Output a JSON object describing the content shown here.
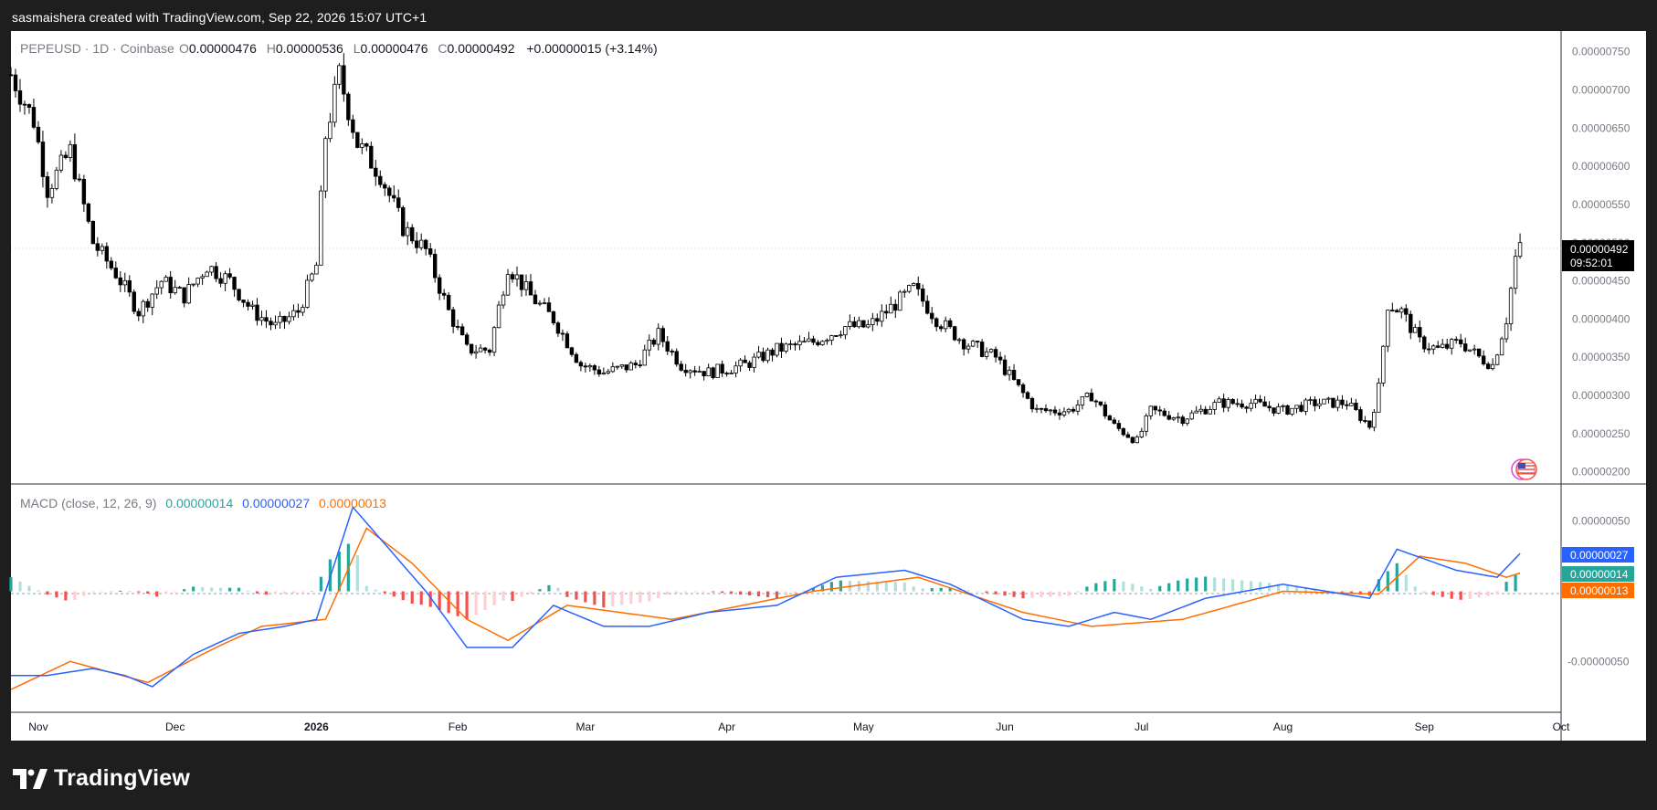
{
  "header": {
    "caption": "sasmaishera created with TradingView.com, Sep 22, 2026 15:07 UTC+1"
  },
  "legend": {
    "symbol": "PEPEUSD · 1D · Coinbase",
    "o_label": "O",
    "o_value": "0.00000476",
    "h_label": "H",
    "h_value": "0.00000536",
    "l_label": "L",
    "l_value": "0.00000476",
    "c_label": "C",
    "c_value": "0.00000492",
    "change": "+0.00000015 (+3.14%)"
  },
  "price_tag": {
    "price": "0.00000492",
    "countdown": "09:52:01"
  },
  "macd_legend": {
    "label": "MACD (close, 12, 26, 9)",
    "histogram": "0.00000014",
    "macd": "0.00000027",
    "signal": "0.00000013"
  },
  "macd_tags": {
    "macd": "0.00000027",
    "histogram": "0.00000014",
    "signal": "0.00000013"
  },
  "footer": {
    "brand": "TradingView"
  },
  "colors": {
    "up": "#26a69a",
    "down": "#ef5350",
    "up_light": "#b2dfdb",
    "down_light": "#ffcdd2",
    "macd_line": "#2962ff",
    "signal_line": "#ff6d00",
    "candle": "#000000"
  },
  "chart_data": [
    {
      "type": "candlestick",
      "title": "PEPEUSD · 1D · Coinbase",
      "x_ticks": [
        "Nov",
        "Dec",
        "2026",
        "Feb",
        "Mar",
        "Apr",
        "May",
        "Jun",
        "Jul",
        "Aug",
        "Sep",
        "Oct"
      ],
      "y_ticks": [
        "0.00000750",
        "0.00000700",
        "0.00000650",
        "0.00000600",
        "0.00000550",
        "0.00000500",
        "0.00000450",
        "0.00000400",
        "0.00000350",
        "0.00000300",
        "0.00000250",
        "0.00000200"
      ],
      "ylim": [
        1.9e-06,
        7.7e-06
      ],
      "x_range": [
        "2025-10-26",
        "2026-10-01"
      ],
      "last_price": 4.92e-06,
      "series_close": [
        [
          "2025-10-26",
          7.2e-06
        ],
        [
          "2025-10-31",
          6.6e-06
        ],
        [
          "2025-11-03",
          5.7e-06
        ],
        [
          "2025-11-08",
          6.2e-06
        ],
        [
          "2025-11-13",
          5e-06
        ],
        [
          "2025-11-18",
          4.6e-06
        ],
        [
          "2025-11-23",
          4.1e-06
        ],
        [
          "2025-11-28",
          4.5e-06
        ],
        [
          "2025-12-03",
          4.3e-06
        ],
        [
          "2025-12-08",
          4.7e-06
        ],
        [
          "2025-12-13",
          4.5e-06
        ],
        [
          "2025-12-18",
          4.1e-06
        ],
        [
          "2025-12-23",
          3.9e-06
        ],
        [
          "2025-12-28",
          4.1e-06
        ],
        [
          "2026-01-01",
          4.7e-06
        ],
        [
          "2026-01-03",
          6.4e-06
        ],
        [
          "2026-01-06",
          7.2e-06
        ],
        [
          "2026-01-10",
          6.3e-06
        ],
        [
          "2026-01-15",
          5.9e-06
        ],
        [
          "2026-01-20",
          5.2e-06
        ],
        [
          "2026-01-25",
          4.9e-06
        ],
        [
          "2026-01-30",
          4.1e-06
        ],
        [
          "2026-02-03",
          3.6e-06
        ],
        [
          "2026-02-08",
          3.6e-06
        ],
        [
          "2026-02-12",
          4.7e-06
        ],
        [
          "2026-02-17",
          4.3e-06
        ],
        [
          "2026-02-22",
          4e-06
        ],
        [
          "2026-02-28",
          3.4e-06
        ],
        [
          "2026-03-05",
          3.3e-06
        ],
        [
          "2026-03-12",
          3.4e-06
        ],
        [
          "2026-03-17",
          3.8e-06
        ],
        [
          "2026-03-22",
          3.4e-06
        ],
        [
          "2026-03-28",
          3.3e-06
        ],
        [
          "2026-04-05",
          3.4e-06
        ],
        [
          "2026-04-12",
          3.6e-06
        ],
        [
          "2026-04-20",
          3.7e-06
        ],
        [
          "2026-04-27",
          3.9e-06
        ],
        [
          "2026-05-02",
          3.9e-06
        ],
        [
          "2026-05-08",
          4.2e-06
        ],
        [
          "2026-05-12",
          4.4e-06
        ],
        [
          "2026-05-17",
          4e-06
        ],
        [
          "2026-05-23",
          3.7e-06
        ],
        [
          "2026-05-30",
          3.5e-06
        ],
        [
          "2026-06-04",
          3.1e-06
        ],
        [
          "2026-06-08",
          2.8e-06
        ],
        [
          "2026-06-15",
          2.8e-06
        ],
        [
          "2026-06-20",
          3e-06
        ],
        [
          "2026-06-25",
          2.6e-06
        ],
        [
          "2026-06-30",
          2.4e-06
        ],
        [
          "2026-07-03",
          2.8e-06
        ],
        [
          "2026-07-10",
          2.7e-06
        ],
        [
          "2026-07-18",
          2.9e-06
        ],
        [
          "2026-07-25",
          2.9e-06
        ],
        [
          "2026-08-01",
          2.8e-06
        ],
        [
          "2026-08-08",
          2.9e-06
        ],
        [
          "2026-08-15",
          2.9e-06
        ],
        [
          "2026-08-20",
          2.6e-06
        ],
        [
          "2026-08-22",
          3.1e-06
        ],
        [
          "2026-08-24",
          4.2e-06
        ],
        [
          "2026-08-27",
          4.1e-06
        ],
        [
          "2026-08-31",
          3.7e-06
        ],
        [
          "2026-09-04",
          3.6e-06
        ],
        [
          "2026-09-09",
          3.7e-06
        ],
        [
          "2026-09-13",
          3.5e-06
        ],
        [
          "2026-09-16",
          3.4e-06
        ],
        [
          "2026-09-19",
          4e-06
        ],
        [
          "2026-09-21",
          4.8e-06
        ],
        [
          "2026-09-22",
          4.92e-06
        ]
      ]
    },
    {
      "type": "line",
      "title": "MACD (close, 12, 26, 9)",
      "y_ticks": [
        "0.00000050",
        "-0.00000050"
      ],
      "ylim": [
        -8.3e-07,
        7e-07
      ],
      "series": [
        {
          "name": "MACD",
          "values": [
            [
              "2025-10-26",
              -6e-07
            ],
            [
              "2025-11-03",
              -6e-07
            ],
            [
              "2025-11-13",
              -5.5e-07
            ],
            [
              "2025-11-20",
              -6e-07
            ],
            [
              "2025-11-26",
              -6.8e-07
            ],
            [
              "2025-12-05",
              -4.5e-07
            ],
            [
              "2025-12-15",
              -3e-07
            ],
            [
              "2025-12-25",
              -2.5e-07
            ],
            [
              "2026-01-01",
              -2e-07
            ],
            [
              "2026-01-06",
              3e-07
            ],
            [
              "2026-01-09",
              6e-07
            ],
            [
              "2026-01-17",
              3e-07
            ],
            [
              "2026-01-25",
              0.0
            ],
            [
              "2026-02-03",
              -4e-07
            ],
            [
              "2026-02-13",
              -4e-07
            ],
            [
              "2026-02-22",
              -1e-07
            ],
            [
              "2026-03-05",
              -2.5e-07
            ],
            [
              "2026-03-15",
              -2.5e-07
            ],
            [
              "2026-03-28",
              -1.5e-07
            ],
            [
              "2026-04-12",
              -1e-07
            ],
            [
              "2026-04-25",
              1e-07
            ],
            [
              "2026-05-10",
              1.5e-07
            ],
            [
              "2026-05-20",
              5e-08
            ],
            [
              "2026-06-05",
              -2e-07
            ],
            [
              "2026-06-15",
              -2.5e-07
            ],
            [
              "2026-06-25",
              -1.5e-07
            ],
            [
              "2026-07-03",
              -2e-07
            ],
            [
              "2026-07-15",
              -5e-08
            ],
            [
              "2026-08-01",
              5e-08
            ],
            [
              "2026-08-20",
              -5e-08
            ],
            [
              "2026-08-26",
              3e-07
            ],
            [
              "2026-09-08",
              1.5e-07
            ],
            [
              "2026-09-17",
              1e-07
            ],
            [
              "2026-09-22",
              2.7e-07
            ]
          ]
        },
        {
          "name": "Signal",
          "values": [
            [
              "2025-10-26",
              -7e-07
            ],
            [
              "2025-11-08",
              -5e-07
            ],
            [
              "2025-11-25",
              -6.5e-07
            ],
            [
              "2025-12-10",
              -4e-07
            ],
            [
              "2025-12-20",
              -2.5e-07
            ],
            [
              "2026-01-03",
              -2e-07
            ],
            [
              "2026-01-12",
              4.5e-07
            ],
            [
              "2026-01-22",
              2e-07
            ],
            [
              "2026-02-03",
              -2e-07
            ],
            [
              "2026-02-12",
              -3.5e-07
            ],
            [
              "2026-02-25",
              -1e-07
            ],
            [
              "2026-03-20",
              -2e-07
            ],
            [
              "2026-04-20",
              0.0
            ],
            [
              "2026-05-13",
              1e-07
            ],
            [
              "2026-06-05",
              -1.5e-07
            ],
            [
              "2026-06-20",
              -2.5e-07
            ],
            [
              "2026-07-10",
              -2e-07
            ],
            [
              "2026-08-01",
              0.0
            ],
            [
              "2026-08-22",
              -2e-08
            ],
            [
              "2026-08-31",
              2.5e-07
            ],
            [
              "2026-09-10",
              2e-07
            ],
            [
              "2026-09-19",
              1e-07
            ],
            [
              "2026-09-22",
              1.3e-07
            ]
          ]
        },
        {
          "name": "Histogram",
          "values": [
            [
              "2026-09-22",
              1.4e-07
            ]
          ]
        }
      ]
    }
  ]
}
